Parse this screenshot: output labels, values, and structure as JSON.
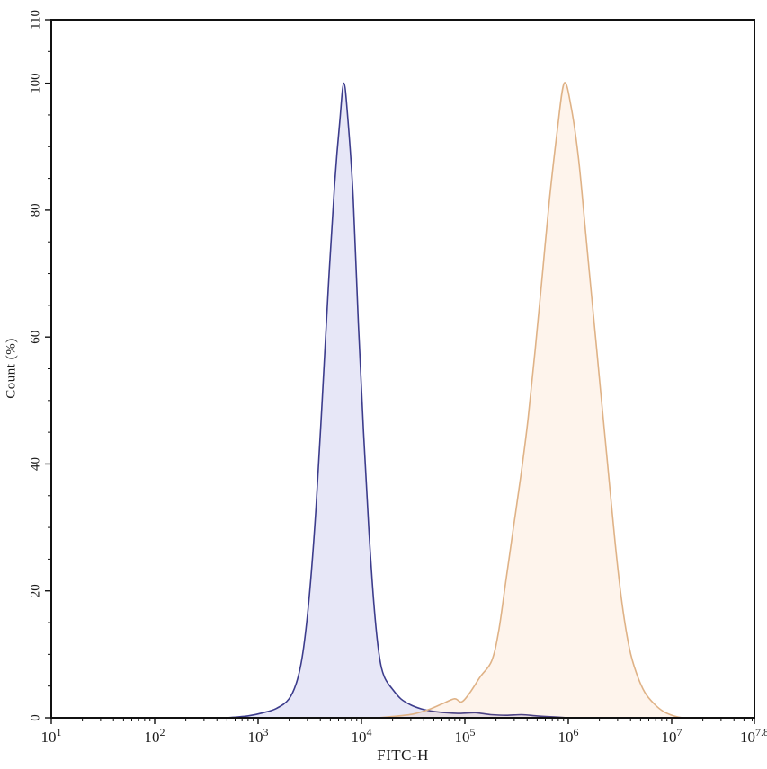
{
  "chart_data": {
    "type": "area",
    "title": "",
    "xlabel": "FITC-H",
    "ylabel": "Count (%)",
    "x_scale": "log10",
    "x_range_log": [
      1,
      7.8
    ],
    "ylim": [
      0,
      110
    ],
    "grid": false,
    "legend": "none",
    "background": "#ffffff",
    "axis_color": "#111111",
    "x_major_ticks": [
      {
        "log": 1,
        "base": "10",
        "exp": "1"
      },
      {
        "log": 2,
        "base": "10",
        "exp": "2"
      },
      {
        "log": 3,
        "base": "10",
        "exp": "3"
      },
      {
        "log": 4,
        "base": "10",
        "exp": "4"
      },
      {
        "log": 5,
        "base": "10",
        "exp": "5"
      },
      {
        "log": 6,
        "base": "10",
        "exp": "6"
      },
      {
        "log": 7,
        "base": "10",
        "exp": "7"
      },
      {
        "log": 7.8,
        "base": "10",
        "exp": "7.8"
      }
    ],
    "y_major_ticks": [
      0,
      20,
      40,
      60,
      80,
      100,
      110
    ],
    "y_minor_step": 5,
    "series": [
      {
        "name": "blue-peak",
        "stroke": "#3c3c8c",
        "fill": "#3b3bbf",
        "fill_opacity": 0.12,
        "peak_log_x": 3.83,
        "peak_percent": 100,
        "points": [
          [
            2.7,
            0
          ],
          [
            2.9,
            0.3
          ],
          [
            3.05,
            0.8
          ],
          [
            3.18,
            1.5
          ],
          [
            3.3,
            3
          ],
          [
            3.38,
            6
          ],
          [
            3.44,
            11
          ],
          [
            3.5,
            20
          ],
          [
            3.56,
            33
          ],
          [
            3.62,
            50
          ],
          [
            3.68,
            68
          ],
          [
            3.74,
            84
          ],
          [
            3.79,
            94
          ],
          [
            3.83,
            100
          ],
          [
            3.87,
            94
          ],
          [
            3.92,
            82
          ],
          [
            3.97,
            62
          ],
          [
            4.02,
            45
          ],
          [
            4.07,
            30
          ],
          [
            4.12,
            18
          ],
          [
            4.17,
            10
          ],
          [
            4.22,
            6.5
          ],
          [
            4.3,
            4.5
          ],
          [
            4.38,
            3
          ],
          [
            4.48,
            2
          ],
          [
            4.58,
            1.4
          ],
          [
            4.7,
            1.0
          ],
          [
            4.82,
            0.8
          ],
          [
            4.95,
            0.7
          ],
          [
            5.1,
            0.8
          ],
          [
            5.25,
            0.5
          ],
          [
            5.4,
            0.4
          ],
          [
            5.55,
            0.5
          ],
          [
            5.7,
            0.3
          ],
          [
            5.85,
            0.15
          ],
          [
            6.0,
            0
          ]
        ]
      },
      {
        "name": "orange-peak",
        "stroke": "#dfb286",
        "fill": "#f08030",
        "fill_opacity": 0.09,
        "peak_log_x": 5.96,
        "peak_percent": 100,
        "points": [
          [
            4.15,
            0
          ],
          [
            4.3,
            0.2
          ],
          [
            4.5,
            0.6
          ],
          [
            4.65,
            1.3
          ],
          [
            4.78,
            2.2
          ],
          [
            4.9,
            3.0
          ],
          [
            4.97,
            2.5
          ],
          [
            5.05,
            4.0
          ],
          [
            5.15,
            6.5
          ],
          [
            5.26,
            9
          ],
          [
            5.33,
            14
          ],
          [
            5.4,
            22
          ],
          [
            5.47,
            30
          ],
          [
            5.54,
            38
          ],
          [
            5.61,
            47
          ],
          [
            5.68,
            58
          ],
          [
            5.75,
            70
          ],
          [
            5.82,
            82
          ],
          [
            5.89,
            92
          ],
          [
            5.96,
            100
          ],
          [
            6.03,
            96
          ],
          [
            6.1,
            88
          ],
          [
            6.17,
            76
          ],
          [
            6.24,
            64
          ],
          [
            6.31,
            52
          ],
          [
            6.38,
            40
          ],
          [
            6.45,
            28
          ],
          [
            6.52,
            18
          ],
          [
            6.59,
            11
          ],
          [
            6.66,
            7
          ],
          [
            6.74,
            4
          ],
          [
            6.83,
            2.2
          ],
          [
            6.92,
            1.0
          ],
          [
            7.02,
            0.3
          ],
          [
            7.1,
            0
          ]
        ]
      }
    ]
  }
}
